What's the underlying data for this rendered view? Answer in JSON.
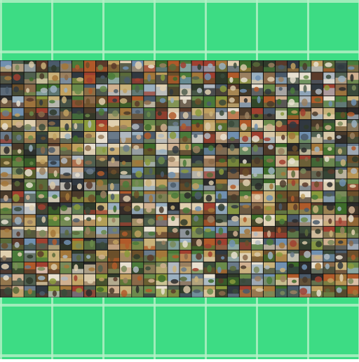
{
  "background": {
    "color": "#3ddc84",
    "grid_line_color": "#b8f0c8"
  },
  "mosaic": {
    "rows": 20,
    "columns": 30,
    "description_colors": [
      "#6b4f2a",
      "#8a9a3c",
      "#3d6b2a",
      "#a3773a",
      "#4a5a6a",
      "#c9b27a",
      "#2f3a2a",
      "#7a8a5a",
      "#5a3a2a",
      "#9ab0c0",
      "#d8c8a8",
      "#3a4a3a",
      "#b05a2a",
      "#6a7a8a",
      "#e0d0b0",
      "#2a2a2a",
      "#8a6a4a",
      "#4a7a3a",
      "#c0a060",
      "#7090b0",
      "#a04030",
      "#506050",
      "#d0b090",
      "#303840",
      "#9a8060",
      "#6a8a4a",
      "#b0b8c0",
      "#4a3a2a",
      "#e8e0d0",
      "#5a6a3a"
    ]
  }
}
